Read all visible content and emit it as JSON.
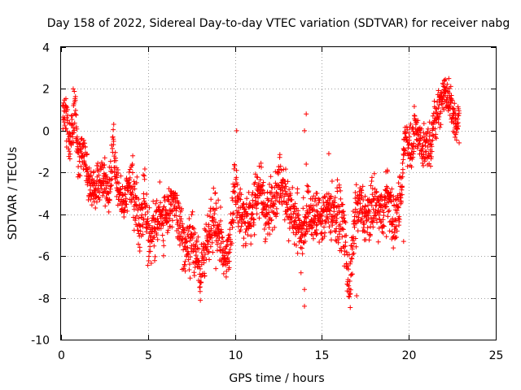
{
  "chart_data": {
    "type": "scatter",
    "title": "Day 158 of 2022, Sidereal Day-to-day VTEC variation (SDTVAR) for receiver nabg",
    "xlabel": "GPS time / hours",
    "ylabel": "SDTVAR / TECUs",
    "xlim": [
      0,
      25
    ],
    "ylim": [
      -10,
      4
    ],
    "grid": true,
    "marker": "+",
    "color": "#ff0000",
    "x_ticks": [
      "0",
      "5",
      "10",
      "15",
      "20",
      "25"
    ],
    "y_ticks": [
      "-10",
      "-8",
      "-6",
      "-4",
      "-2",
      "0",
      "2",
      "4"
    ],
    "series": [
      {
        "name": "SDTVAR",
        "trend_x": [
          0.1,
          0.3,
          0.5,
          0.8,
          1.0,
          1.3,
          1.6,
          2.0,
          2.4,
          2.8,
          3.0,
          3.3,
          3.6,
          4.0,
          4.3,
          4.6,
          4.8,
          5.0,
          5.3,
          5.6,
          6.0,
          6.4,
          6.8,
          7.2,
          7.6,
          8.0,
          8.4,
          8.8,
          9.2,
          9.6,
          10.0,
          10.3,
          10.6,
          11.0,
          11.4,
          11.8,
          12.2,
          12.6,
          13.0,
          13.4,
          13.8,
          14.2,
          14.6,
          15.0,
          15.4,
          15.8,
          16.2,
          16.6,
          16.9,
          17.2,
          17.6,
          18.0,
          18.4,
          18.8,
          19.2,
          19.6,
          19.8,
          20.1,
          20.4,
          20.8,
          21.2,
          21.6,
          22.0,
          22.3,
          22.6,
          22.9
        ],
        "trend_y": [
          1.0,
          0.6,
          -0.8,
          1.0,
          -1.6,
          -0.7,
          -2.6,
          -3.0,
          -2.2,
          -3.0,
          -0.6,
          -3.1,
          -3.6,
          -2.2,
          -3.8,
          -4.6,
          -2.8,
          -4.9,
          -5.0,
          -4.0,
          -4.3,
          -3.1,
          -4.6,
          -5.7,
          -5.2,
          -7.0,
          -5.4,
          -4.0,
          -5.5,
          -6.1,
          -2.7,
          -3.9,
          -4.4,
          -3.9,
          -2.6,
          -4.0,
          -3.5,
          -2.2,
          -3.4,
          -4.1,
          -4.9,
          -3.8,
          -4.2,
          -4.1,
          -3.7,
          -4.0,
          -4.4,
          -7.6,
          -4.2,
          -3.6,
          -4.4,
          -3.5,
          -4.1,
          -3.1,
          -4.6,
          -2.6,
          0.0,
          -1.0,
          0.2,
          -0.8,
          -0.6,
          0.7,
          1.9,
          1.5,
          0.5,
          0.4
        ],
        "outliers": [
          [
            14.0,
            -8.4
          ],
          [
            14.0,
            -7.6
          ],
          [
            14.1,
            0.8
          ],
          [
            14.0,
            0.0
          ],
          [
            14.1,
            -1.6
          ],
          [
            10.1,
            0.0
          ],
          [
            19.7,
            -5.3
          ],
          [
            16.0,
            -2.6
          ],
          [
            17.0,
            -7.9
          ],
          [
            13.8,
            -6.8
          ],
          [
            11.2,
            -3.2
          ],
          [
            8.9,
            -6.6
          ],
          [
            15.4,
            -1.1
          ],
          [
            0.7,
            2.0
          ],
          [
            22.3,
            2.5
          ]
        ]
      }
    ]
  }
}
